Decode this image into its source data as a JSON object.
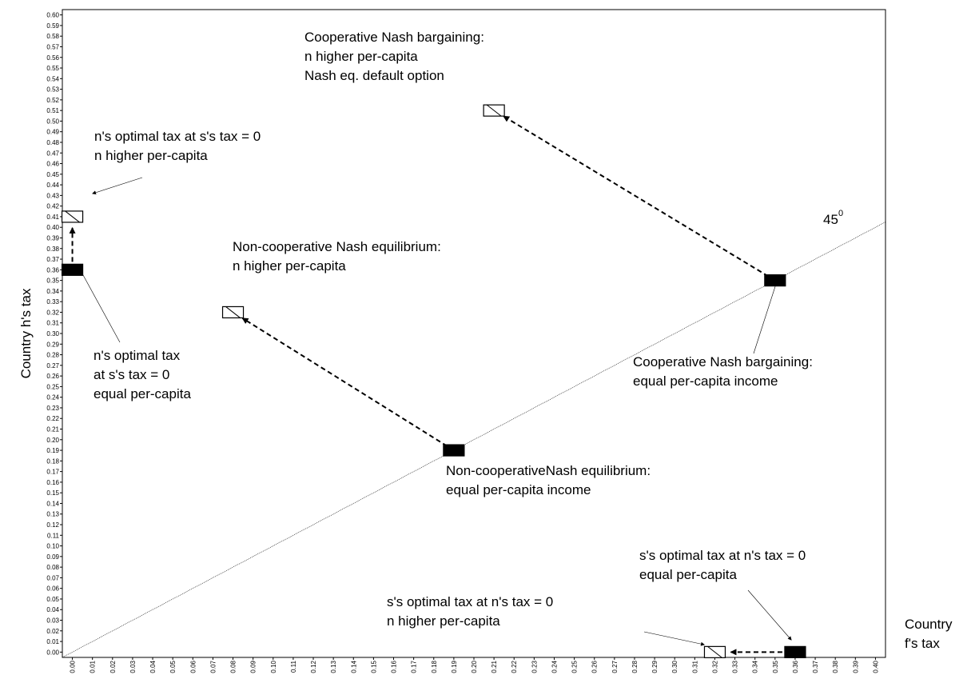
{
  "chart_data": {
    "type": "scatter",
    "ylabel": "Country h's tax",
    "xlabel": [
      "Country",
      "f's tax"
    ],
    "xlim": [
      -0.005,
      0.405
    ],
    "ylim": [
      -0.005,
      0.605
    ],
    "diagonal": true,
    "series": [
      {
        "style": "filled",
        "color": "#000000",
        "x": [
          0.19,
          0.35,
          0.0,
          0.36
        ],
        "y": [
          0.19,
          0.35,
          0.36,
          0.0
        ]
      },
      {
        "style": "hatched",
        "color": "#000000",
        "x": [
          0.08,
          0.21,
          0.0,
          0.32
        ],
        "y": [
          0.32,
          0.51,
          0.41,
          0.0
        ]
      }
    ],
    "annotations": [
      {
        "lines": [
          "Cooperative Nash bargaining:",
          "n higher per-capita",
          "Nash eq. default option"
        ]
      },
      {
        "lines": [
          "n's optimal tax at s's tax = 0",
          "n higher per-capita"
        ]
      },
      {
        "lines": [
          "Non-cooperative Nash equilibrium:",
          "n higher per-capita"
        ]
      },
      {
        "lines": [
          "n's optimal tax",
          "at s's tax = 0",
          "equal per-capita"
        ]
      },
      {
        "lines": [
          "Cooperative Nash bargaining:",
          "equal per-capita income"
        ]
      },
      {
        "lines": [
          "Non-cooperativeNash equilibrium:",
          "equal per-capita income"
        ]
      },
      {
        "lines": [
          "s's optimal tax at n's tax = 0",
          "equal per-capita"
        ]
      },
      {
        "lines": [
          "s's optimal tax at n's tax = 0",
          "n higher per-capita"
        ]
      }
    ],
    "angle_label": {
      "text": "45",
      "sup": "0"
    },
    "xticks": [
      {
        "value": 0,
        "label": "0.00"
      },
      {
        "value": 0.01,
        "label": "0.01"
      },
      {
        "value": 0.02,
        "label": "0.02"
      },
      {
        "value": 0.03,
        "label": "0.03"
      },
      {
        "value": 0.04,
        "label": "0.04"
      },
      {
        "value": 0.05,
        "label": "0.05"
      },
      {
        "value": 0.06,
        "label": "0.06"
      },
      {
        "value": 0.07,
        "label": "0.07"
      },
      {
        "value": 0.08,
        "label": "0.08"
      },
      {
        "value": 0.09,
        "label": "0.09"
      },
      {
        "value": 0.1,
        "label": "0.10"
      },
      {
        "value": 0.11,
        "label": "0.11"
      },
      {
        "value": 0.12,
        "label": "0.12"
      },
      {
        "value": 0.13,
        "label": "0.13"
      },
      {
        "value": 0.14,
        "label": "0.14"
      },
      {
        "value": 0.15,
        "label": "0.15"
      },
      {
        "value": 0.16,
        "label": "0.16"
      },
      {
        "value": 0.17,
        "label": "0.17"
      },
      {
        "value": 0.18,
        "label": "0.18"
      },
      {
        "value": 0.19,
        "label": "0.19"
      },
      {
        "value": 0.2,
        "label": "0.20"
      },
      {
        "value": 0.21,
        "label": "0.21"
      },
      {
        "value": 0.22,
        "label": "0.22"
      },
      {
        "value": 0.23,
        "label": "0.23"
      },
      {
        "value": 0.24,
        "label": "0.24"
      },
      {
        "value": 0.25,
        "label": "0.25"
      },
      {
        "value": 0.26,
        "label": "0.26"
      },
      {
        "value": 0.27,
        "label": "0.27"
      },
      {
        "value": 0.28,
        "label": "0.28"
      },
      {
        "value": 0.29,
        "label": "0.29"
      },
      {
        "value": 0.3,
        "label": "0.30"
      },
      {
        "value": 0.31,
        "label": "0.31"
      },
      {
        "value": 0.32,
        "label": "0.32"
      },
      {
        "value": 0.33,
        "label": "0.33"
      },
      {
        "value": 0.34,
        "label": "0.34"
      },
      {
        "value": 0.35,
        "label": "0.35"
      },
      {
        "value": 0.36,
        "label": "0.36"
      },
      {
        "value": 0.37,
        "label": "0.37"
      },
      {
        "value": 0.38,
        "label": "0.38"
      },
      {
        "value": 0.39,
        "label": "0.39"
      },
      {
        "value": 0.4,
        "label": "0.40"
      }
    ],
    "yticks": [
      {
        "value": 0,
        "label": "0.00"
      },
      {
        "value": 0.01,
        "label": "0.01"
      },
      {
        "value": 0.02,
        "label": "0.02"
      },
      {
        "value": 0.03,
        "label": "0.03"
      },
      {
        "value": 0.04,
        "label": "0.04"
      },
      {
        "value": 0.05,
        "label": "0.05"
      },
      {
        "value": 0.06,
        "label": "0.06"
      },
      {
        "value": 0.07,
        "label": "0.07"
      },
      {
        "value": 0.08,
        "label": "0.08"
      },
      {
        "value": 0.09,
        "label": "0.09"
      },
      {
        "value": 0.1,
        "label": "0.10"
      },
      {
        "value": 0.11,
        "label": "0.11"
      },
      {
        "value": 0.12,
        "label": "0.12"
      },
      {
        "value": 0.13,
        "label": "0.13"
      },
      {
        "value": 0.14,
        "label": "0.14"
      },
      {
        "value": 0.15,
        "label": "0.15"
      },
      {
        "value": 0.16,
        "label": "0.16"
      },
      {
        "value": 0.17,
        "label": "0.17"
      },
      {
        "value": 0.18,
        "label": "0.18"
      },
      {
        "value": 0.19,
        "label": "0.19"
      },
      {
        "value": 0.2,
        "label": "0.20"
      },
      {
        "value": 0.21,
        "label": "0.21"
      },
      {
        "value": 0.22,
        "label": "0.22"
      },
      {
        "value": 0.23,
        "label": "0.23"
      },
      {
        "value": 0.24,
        "label": "0.24"
      },
      {
        "value": 0.25,
        "label": "0.25"
      },
      {
        "value": 0.26,
        "label": "0.26"
      },
      {
        "value": 0.27,
        "label": "0.27"
      },
      {
        "value": 0.28,
        "label": "0.28"
      },
      {
        "value": 0.29,
        "label": "0.29"
      },
      {
        "value": 0.3,
        "label": "0.30"
      },
      {
        "value": 0.31,
        "label": "0.31"
      },
      {
        "value": 0.32,
        "label": "0.32"
      },
      {
        "value": 0.33,
        "label": "0.33"
      },
      {
        "value": 0.34,
        "label": "0.34"
      },
      {
        "value": 0.35,
        "label": "0.35"
      },
      {
        "value": 0.36,
        "label": "0.36"
      },
      {
        "value": 0.37,
        "label": "0.37"
      },
      {
        "value": 0.38,
        "label": "0.38"
      },
      {
        "value": 0.39,
        "label": "0.39"
      },
      {
        "value": 0.4,
        "label": "0.40"
      },
      {
        "value": 0.41,
        "label": "0.41"
      },
      {
        "value": 0.42,
        "label": "0.42"
      },
      {
        "value": 0.43,
        "label": "0.43"
      },
      {
        "value": 0.44,
        "label": "0.44"
      },
      {
        "value": 0.45,
        "label": "0.45"
      },
      {
        "value": 0.46,
        "label": "0.46"
      },
      {
        "value": 0.47,
        "label": "0.47"
      },
      {
        "value": 0.48,
        "label": "0.48"
      },
      {
        "value": 0.49,
        "label": "0.49"
      },
      {
        "value": 0.5,
        "label": "0.50"
      },
      {
        "value": 0.51,
        "label": "0.51"
      },
      {
        "value": 0.52,
        "label": "0.52"
      },
      {
        "value": 0.53,
        "label": "0.53"
      },
      {
        "value": 0.54,
        "label": "0.54"
      },
      {
        "value": 0.55,
        "label": "0.55"
      },
      {
        "value": 0.56,
        "label": "0.56"
      },
      {
        "value": 0.57,
        "label": "0.57"
      },
      {
        "value": 0.58,
        "label": "0.58"
      },
      {
        "value": 0.59,
        "label": "0.59"
      },
      {
        "value": 0.6,
        "label": "0.60"
      }
    ]
  }
}
